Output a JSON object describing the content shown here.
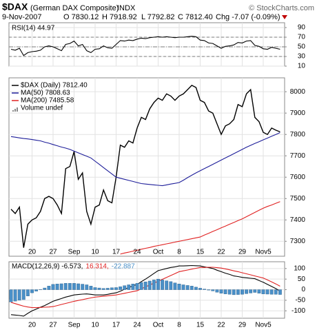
{
  "header": {
    "symbol": "$DAX",
    "name": "(German DAX Composite)",
    "exchange": "INDX",
    "copyright": "© StockCharts.com",
    "date": "9-Nov-2007",
    "ohlc": [
      "O 7830.12",
      "H 7918.92",
      "L 7792.82",
      "C 7812.40"
    ],
    "change": "Chg -7.07 (-0.09%)"
  },
  "chart_data": [
    {
      "type": "line",
      "ylim": [
        10,
        100
      ],
      "yticks": [
        10,
        30,
        50,
        70,
        90
      ],
      "grid": true,
      "reference_lines": [
        {
          "value": 70,
          "style": "dash"
        },
        {
          "value": 50,
          "style": "dashdot"
        },
        {
          "value": 30,
          "style": "dash"
        }
      ],
      "series": [
        {
          "name": "RSI(14) 44.97",
          "color": "#000000",
          "values": [
            45,
            43,
            47,
            32,
            38,
            40,
            41,
            43,
            50,
            52,
            50,
            46,
            42,
            55,
            57,
            62,
            52,
            55,
            42,
            38,
            45,
            46,
            52,
            48,
            47,
            55,
            63,
            62,
            64,
            63,
            66,
            68,
            67,
            69,
            70,
            71,
            70,
            71,
            70,
            69,
            70,
            70,
            71,
            72,
            71,
            64,
            63,
            58,
            57,
            52,
            47,
            51,
            52,
            54,
            59,
            58,
            62,
            63,
            53,
            51,
            46,
            45,
            49,
            47,
            44.97
          ]
        }
      ]
    },
    {
      "type": "line",
      "ylim": [
        7230,
        8065
      ],
      "yticks": [
        7300,
        7400,
        7500,
        7600,
        7700,
        7800,
        7900,
        8000
      ],
      "grid": true,
      "categories": [
        null,
        null,
        null,
        null,
        null,
        "20",
        null,
        null,
        null,
        null,
        "27",
        null,
        null,
        null,
        null,
        "Sep",
        null,
        null,
        null,
        null,
        "10",
        null,
        null,
        null,
        null,
        "17",
        null,
        null,
        null,
        null,
        "24",
        null,
        null,
        null,
        null,
        "Oct",
        null,
        null,
        null,
        null,
        "8",
        null,
        null,
        null,
        null,
        "15",
        null,
        null,
        null,
        null,
        "22",
        null,
        null,
        null,
        null,
        "29",
        null,
        null,
        null,
        null,
        "Nov5",
        null,
        null,
        null,
        null
      ],
      "legend_extra": "Volume undef",
      "series": [
        {
          "name": "$DAX (Daily) 7812.40",
          "color": "#000000",
          "values": [
            7450,
            7430,
            7460,
            7270,
            7380,
            7400,
            7410,
            7440,
            7500,
            7510,
            7500,
            7470,
            7430,
            7640,
            7650,
            7720,
            7590,
            7620,
            7440,
            7380,
            7460,
            7470,
            7540,
            7490,
            7480,
            7600,
            7750,
            7740,
            7770,
            7760,
            7830,
            7880,
            7870,
            7920,
            7950,
            7970,
            7960,
            7990,
            7980,
            7960,
            7980,
            7990,
            8010,
            8030,
            8020,
            7960,
            7950,
            7910,
            7900,
            7850,
            7800,
            7840,
            7850,
            7870,
            7940,
            7930,
            7990,
            8010,
            7880,
            7860,
            7810,
            7800,
            7830,
            7820,
            7812.4
          ]
        },
        {
          "name": "MA(50) 7808.63",
          "color": "#1c1c99",
          "values": [
            7790,
            7787,
            7784,
            7781,
            7779,
            7776,
            7773,
            7770,
            7764,
            7759,
            7753,
            7747,
            7741,
            7736,
            7730,
            7722,
            7714,
            7706,
            7698,
            7690,
            7675,
            7660,
            7645,
            7630,
            7615,
            7600,
            7595,
            7590,
            7585,
            7580,
            7575,
            7570,
            7568,
            7566,
            7564,
            7562,
            7560,
            7564,
            7568,
            7571,
            7575,
            7586,
            7598,
            7609,
            7620,
            7630,
            7640,
            7650,
            7660,
            7670,
            7680,
            7690,
            7700,
            7710,
            7720,
            7730,
            7740,
            7749,
            7758,
            7766,
            7775,
            7783,
            7792,
            7800,
            7808.63
          ]
        },
        {
          "name": "MA(200) 7485.58",
          "color": "#e02020",
          "values": [
            null,
            null,
            null,
            null,
            null,
            null,
            null,
            null,
            null,
            null,
            null,
            null,
            null,
            null,
            null,
            null,
            null,
            null,
            null,
            null,
            null,
            null,
            null,
            null,
            null,
            null,
            7240,
            7245,
            7249,
            7254,
            7258,
            7263,
            7267,
            7271,
            7276,
            7280,
            7284,
            7288,
            7292,
            7296,
            7300,
            7304,
            7308,
            7312,
            7316,
            7320,
            7329,
            7337,
            7346,
            7354,
            7363,
            7371,
            7380,
            7388,
            7397,
            7405,
            7415,
            7425,
            7435,
            7445,
            7455,
            7463,
            7470,
            7478,
            7485.58
          ]
        }
      ]
    },
    {
      "type": "line",
      "ylim": [
        -135,
        132
      ],
      "yticks": [
        -100,
        -50,
        0,
        50,
        100
      ],
      "grid": true,
      "categories": [
        null,
        null,
        null,
        null,
        null,
        "20",
        null,
        null,
        null,
        null,
        "27",
        null,
        null,
        null,
        null,
        "Sep",
        null,
        null,
        null,
        null,
        "10",
        null,
        null,
        null,
        null,
        "17",
        null,
        null,
        null,
        null,
        "24",
        null,
        null,
        null,
        null,
        "Oct",
        null,
        null,
        null,
        null,
        "8",
        null,
        null,
        null,
        null,
        "15",
        null,
        null,
        null,
        null,
        "22",
        null,
        null,
        null,
        null,
        "29",
        null,
        null,
        null,
        null,
        "Nov5",
        null,
        null,
        null,
        null
      ],
      "series": [
        {
          "name": "MACD(12,26,9) -6.573,",
          "color": "#000000",
          "values": [
            -118,
            -120,
            -122,
            -125,
            -112,
            -100,
            -92,
            -83,
            -75,
            -65,
            -55,
            -48,
            -42,
            -35,
            -30,
            -25,
            -23,
            -21,
            -20,
            -22,
            -25,
            -25,
            -25,
            -22,
            -18,
            -15,
            -7,
            2,
            10,
            18,
            25,
            38,
            50,
            63,
            77,
            90,
            95,
            100,
            105,
            108,
            112,
            112,
            113,
            114,
            113,
            112,
            108,
            104,
            100,
            92,
            85,
            78,
            72,
            65,
            62,
            58,
            56,
            54,
            52,
            43,
            35,
            25,
            15,
            5,
            -6.573
          ]
        },
        {
          "name": "16.314,",
          "color": "#e02020",
          "values": [
            -60,
            -66,
            -72,
            -78,
            -82,
            -85,
            -85,
            -84,
            -83,
            -82,
            -80,
            -75,
            -70,
            -65,
            -60,
            -55,
            -51,
            -47,
            -43,
            -39,
            -35,
            -33,
            -31,
            -29,
            -27,
            -25,
            -21,
            -17,
            -13,
            -9,
            -5,
            4,
            13,
            22,
            31,
            40,
            49,
            58,
            67,
            76,
            85,
            89,
            93,
            97,
            101,
            105,
            105,
            106,
            106,
            104,
            102,
            98,
            94,
            89,
            85,
            80,
            75,
            70,
            65,
            60,
            55,
            46,
            37,
            27,
            16.314
          ]
        },
        {
          "name": "-22.887",
          "type": "bar",
          "color": "#4a90c8",
          "values": [
            -58,
            -54,
            -50,
            -47,
            -30,
            -15,
            -7,
            1,
            8,
            17,
            25,
            27,
            28,
            30,
            30,
            30,
            28,
            26,
            23,
            17,
            10,
            8,
            6,
            7,
            9,
            10,
            14,
            19,
            23,
            27,
            30,
            34,
            37,
            41,
            46,
            50,
            46,
            42,
            38,
            32,
            27,
            23,
            20,
            17,
            12,
            7,
            3,
            -2,
            -6,
            -12,
            -17,
            -20,
            -22,
            -24,
            -23,
            -22,
            -19,
            -16,
            -13,
            -17,
            -20,
            -21,
            -22,
            -22,
            -22.887
          ]
        }
      ]
    }
  ]
}
